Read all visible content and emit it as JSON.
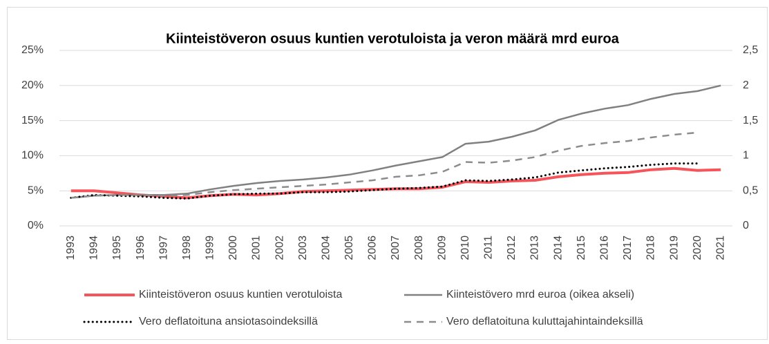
{
  "chart_data": {
    "type": "line",
    "title": "Kiinteistöveron osuus kuntien verotuloista ja veron määrä mrd euroa",
    "categories": [
      "1993",
      "1994",
      "1995",
      "1996",
      "1997",
      "1998",
      "1999",
      "2000",
      "2001",
      "2002",
      "2003",
      "2004",
      "2005",
      "2006",
      "2007",
      "2008",
      "2009",
      "2010",
      "2011",
      "2012",
      "2013",
      "2014",
      "2015",
      "2016",
      "2017",
      "2018",
      "2019",
      "2020",
      "2021"
    ],
    "series": [
      {
        "name": "Kiinteistöveron osuus kuntien verotuloista",
        "color": "#f4545a",
        "line_style": "solid",
        "line_width": 4,
        "axis": "y",
        "values": [
          5.0,
          5.0,
          4.7,
          4.4,
          4.2,
          4.0,
          4.3,
          4.5,
          4.4,
          4.6,
          4.9,
          5.0,
          5.1,
          5.2,
          5.3,
          5.3,
          5.5,
          6.3,
          6.2,
          6.4,
          6.5,
          7.0,
          7.3,
          7.5,
          7.6,
          8.0,
          8.2,
          7.9,
          8.0
        ]
      },
      {
        "name": "Kiinteistövero mrd euroa (oikea akseli)",
        "color": "#808080",
        "line_style": "solid",
        "line_width": 2.5,
        "axis": "y2",
        "values": [
          0.4,
          0.43,
          0.44,
          0.44,
          0.44,
          0.46,
          0.52,
          0.57,
          0.61,
          0.64,
          0.66,
          0.69,
          0.73,
          0.79,
          0.86,
          0.92,
          0.98,
          1.17,
          1.2,
          1.27,
          1.36,
          1.51,
          1.6,
          1.67,
          1.72,
          1.81,
          1.88,
          1.92,
          2.0
        ]
      },
      {
        "name": "Vero deflatoituna ansiotasoindeksillä",
        "color": "#000000",
        "line_style": "dotted",
        "line_width": 3,
        "axis": "y2",
        "values": [
          0.4,
          0.44,
          0.43,
          0.42,
          0.4,
          0.39,
          0.43,
          0.45,
          0.46,
          0.46,
          0.48,
          0.48,
          0.49,
          0.51,
          0.53,
          0.54,
          0.56,
          0.65,
          0.64,
          0.66,
          0.69,
          0.76,
          0.79,
          0.82,
          0.84,
          0.87,
          0.89,
          0.89,
          null
        ]
      },
      {
        "name": "Vero deflatoituna kuluttajahintaindeksillä",
        "color": "#8c8c8c",
        "line_style": "dashed",
        "line_width": 2.5,
        "axis": "y2",
        "values": [
          0.4,
          0.43,
          0.44,
          0.44,
          0.43,
          0.44,
          0.48,
          0.51,
          0.53,
          0.55,
          0.57,
          0.59,
          0.62,
          0.65,
          0.7,
          0.72,
          0.77,
          0.91,
          0.9,
          0.93,
          0.98,
          1.07,
          1.14,
          1.18,
          1.21,
          1.26,
          1.3,
          1.33,
          null
        ]
      }
    ],
    "ylim": [
      0,
      25
    ],
    "yticks": [
      {
        "value": 0,
        "label": "0%"
      },
      {
        "value": 5,
        "label": "5%"
      },
      {
        "value": 10,
        "label": "10%"
      },
      {
        "value": 15,
        "label": "15%"
      },
      {
        "value": 20,
        "label": "20%"
      },
      {
        "value": 25,
        "label": "25%"
      }
    ],
    "y2lim": [
      0,
      2.5
    ],
    "y2ticks": [
      0,
      {
        "value": 0.5,
        "label": "0,5"
      },
      1,
      {
        "value": 1.5,
        "label": "1,5"
      },
      2,
      {
        "value": 2.5,
        "label": "2,5"
      }
    ],
    "grid": true,
    "legend": "bottom"
  }
}
